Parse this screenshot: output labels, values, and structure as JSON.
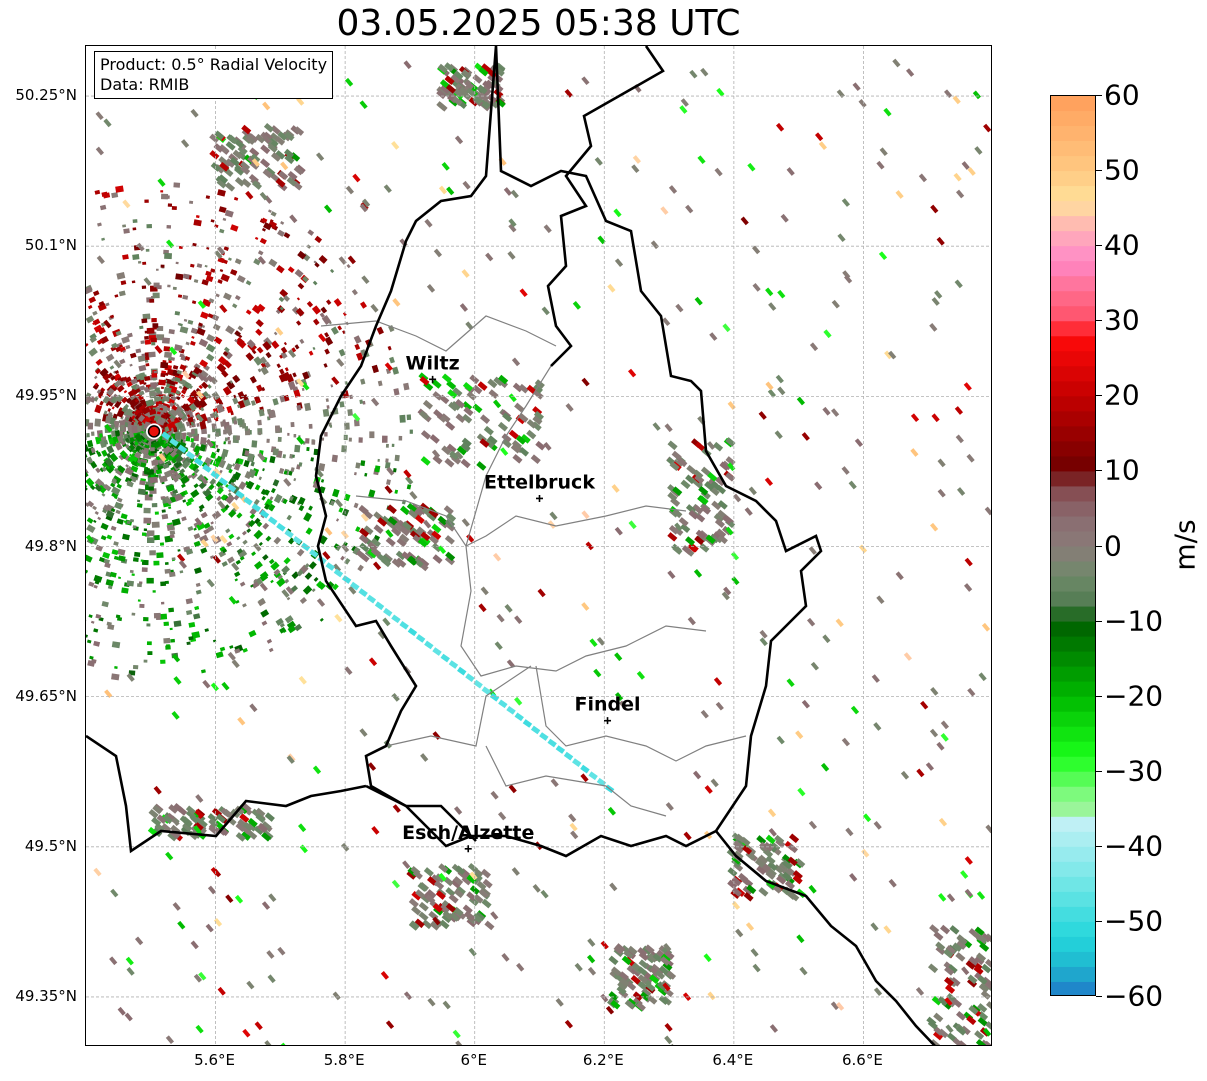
{
  "title": "03.05.2025 05:38 UTC",
  "info": {
    "product": "Product: 0.5° Radial Velocity",
    "data_source": "Data: RMIB"
  },
  "map": {
    "lon_range": [
      5.4,
      6.8
    ],
    "lat_range": [
      49.3,
      50.3
    ],
    "lat_ticks": [
      {
        "value": 50.25,
        "label": "50.25°N"
      },
      {
        "value": 50.1,
        "label": "50.1°N"
      },
      {
        "value": 49.95,
        "label": "49.95°N"
      },
      {
        "value": 49.8,
        "label": "49.8°N"
      },
      {
        "value": 49.65,
        "label": "49.65°N"
      },
      {
        "value": 49.5,
        "label": "49.5°N"
      },
      {
        "value": 49.35,
        "label": "49.35°N"
      }
    ],
    "lon_ticks": [
      {
        "value": 5.6,
        "label": "5.6°E"
      },
      {
        "value": 5.8,
        "label": "5.8°E"
      },
      {
        "value": 6.0,
        "label": "6°E"
      },
      {
        "value": 6.2,
        "label": "6.2°E"
      },
      {
        "value": 6.4,
        "label": "6.4°E"
      },
      {
        "value": 6.6,
        "label": "6.6°E"
      }
    ],
    "grid": true,
    "radar_site": {
      "lon": 5.505,
      "lat": 49.915,
      "marker_color": "#e8120c"
    },
    "cities": [
      {
        "name": "Wiltz",
        "lon": 5.935,
        "lat": 49.967
      },
      {
        "name": "Ettelbruck",
        "lon": 6.1,
        "lat": 49.848
      },
      {
        "name": "Findel",
        "lon": 6.205,
        "lat": 49.626
      },
      {
        "name": "Esch/Alzette",
        "lon": 5.99,
        "lat": 49.498
      }
    ],
    "colors": {
      "border": "#000000",
      "cantons": "#808080",
      "grid": "#b0b0b0"
    }
  },
  "colorbar": {
    "label": "m/s",
    "min": -60,
    "max": 60,
    "ticks": [
      {
        "value": 60,
        "label": "60"
      },
      {
        "value": 50,
        "label": "50"
      },
      {
        "value": 40,
        "label": "40"
      },
      {
        "value": 30,
        "label": "30"
      },
      {
        "value": 20,
        "label": "20"
      },
      {
        "value": 10,
        "label": "10"
      },
      {
        "value": 0,
        "label": "0"
      },
      {
        "value": -10,
        "label": "−10"
      },
      {
        "value": -20,
        "label": "−20"
      },
      {
        "value": -30,
        "label": "−30"
      },
      {
        "value": -40,
        "label": "−40"
      },
      {
        "value": -50,
        "label": "−50"
      },
      {
        "value": -60,
        "label": "−60"
      }
    ],
    "stops": [
      {
        "value": 60,
        "color": "#ff9e5a"
      },
      {
        "value": 55,
        "color": "#ffb36e"
      },
      {
        "value": 50,
        "color": "#ffc982"
      },
      {
        "value": 46,
        "color": "#ffe19a"
      },
      {
        "value": 42,
        "color": "#ffb0b8"
      },
      {
        "value": 38,
        "color": "#ff88c8"
      },
      {
        "value": 34,
        "color": "#ff6f90"
      },
      {
        "value": 30,
        "color": "#ff4f66"
      },
      {
        "value": 28,
        "color": "#ff0a0a"
      },
      {
        "value": 20,
        "color": "#c40000"
      },
      {
        "value": 10,
        "color": "#6e0000"
      },
      {
        "value": 8,
        "color": "#85454a"
      },
      {
        "value": 4,
        "color": "#8a6b70"
      },
      {
        "value": 0,
        "color": "#8a7b78"
      },
      {
        "value": -4,
        "color": "#6f8a6a"
      },
      {
        "value": -8,
        "color": "#4f7a4f"
      },
      {
        "value": -10,
        "color": "#005e00"
      },
      {
        "value": -20,
        "color": "#00b800"
      },
      {
        "value": -28,
        "color": "#1aff1a"
      },
      {
        "value": -33,
        "color": "#7dfa7d"
      },
      {
        "value": -36,
        "color": "#a8f2a8"
      },
      {
        "value": -37,
        "color": "#bff0f5"
      },
      {
        "value": -45,
        "color": "#6fe6e6"
      },
      {
        "value": -52,
        "color": "#24d7dc"
      },
      {
        "value": -56,
        "color": "#1fb5cf"
      },
      {
        "value": -60,
        "color": "#1f78c8"
      }
    ]
  }
}
